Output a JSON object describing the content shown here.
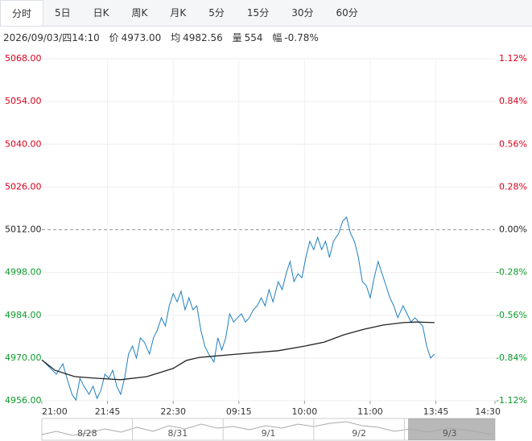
{
  "tabs": [
    "分时",
    "5日",
    "日K",
    "周K",
    "月K",
    "5分",
    "15分",
    "30分",
    "60分"
  ],
  "info": {
    "datetime": "2026/09/03/四14:10",
    "price_label": "价",
    "price": "4973.00",
    "avg_label": "均",
    "avg": "4982.56",
    "vol_label": "量",
    "vol": "554",
    "chg_label": "幅",
    "chg": "-0.78%"
  },
  "chart_data": {
    "type": "line",
    "xlim": [
      0,
      345
    ],
    "xticks": [
      {
        "value": 0,
        "label": "21:00"
      },
      {
        "value": 50,
        "label": "21:45"
      },
      {
        "value": 100,
        "label": "22:30"
      },
      {
        "value": 150,
        "label": "09:15"
      },
      {
        "value": 200,
        "label": "10:00"
      },
      {
        "value": 250,
        "label": "11:00"
      },
      {
        "value": 300,
        "label": "13:45"
      },
      {
        "value": 345,
        "label": "14:30"
      }
    ],
    "ylim": [
      4956,
      5068
    ],
    "yticks": [
      {
        "value": 5068,
        "label": "5068.00"
      },
      {
        "value": 5054,
        "label": "5054.00"
      },
      {
        "value": 5040,
        "label": "5040.00"
      },
      {
        "value": 5026,
        "label": "5026.00"
      },
      {
        "value": 5012,
        "label": "5012.00"
      },
      {
        "value": 4998,
        "label": "4998.00"
      },
      {
        "value": 4984,
        "label": "4984.00"
      },
      {
        "value": 4970,
        "label": "4970.00"
      },
      {
        "value": 4956,
        "label": "4956.00"
      }
    ],
    "y2lim": [
      -1.12,
      1.12
    ],
    "y2ticks": [
      {
        "value": 1.12,
        "label": "1.12%"
      },
      {
        "value": 0.84,
        "label": "0.84%"
      },
      {
        "value": 0.56,
        "label": "0.56%"
      },
      {
        "value": 0.28,
        "label": "0.28%"
      },
      {
        "value": 0,
        "label": "0.00%"
      },
      {
        "value": -0.28,
        "label": "-0.28%"
      },
      {
        "value": -0.56,
        "label": "-0.56%"
      },
      {
        "value": -0.84,
        "label": "-0.84%"
      },
      {
        "value": -1.12,
        "label": "-1.12%"
      }
    ],
    "grid": true,
    "series": [
      {
        "color": "#1f7fc0",
        "x": [
          0,
          5,
          11,
          16,
          20,
          23,
          26,
          29,
          32,
          36,
          39,
          42,
          45,
          48,
          51,
          54,
          57,
          60,
          63,
          66,
          69,
          72,
          75,
          78,
          82,
          85,
          88,
          91,
          94,
          97,
          100,
          103,
          106,
          109,
          112,
          115,
          118,
          121,
          124,
          127,
          131,
          134,
          137,
          140,
          143,
          146,
          149,
          152,
          155,
          158,
          161,
          164,
          167,
          170,
          173,
          176,
          180,
          183,
          186,
          189,
          192,
          195,
          198,
          201,
          204,
          207,
          210,
          213,
          216,
          219,
          222,
          226,
          229,
          232,
          235,
          238,
          241,
          244,
          247,
          250,
          253,
          256,
          259,
          262,
          265,
          268,
          271,
          275,
          278,
          281,
          284,
          287,
          290,
          293,
          296,
          299
        ],
        "values": [
          4969.4,
          4967.3,
          4964.7,
          4968.1,
          4962.1,
          4958.1,
          4956.2,
          4963.4,
          4960.8,
          4958.1,
          4960.8,
          4956.8,
          4959.4,
          4964.7,
          4963.4,
          4966.0,
          4960.8,
          4958.1,
          4963.4,
          4971.3,
          4973.9,
          4970.0,
          4976.6,
          4975.2,
          4971.3,
          4976.6,
          4979.2,
          4983.2,
          4980.5,
          4987.1,
          4991.1,
          4988.4,
          4991.9,
          4985.8,
          4989.7,
          4985.8,
          4987.1,
          4979.2,
          4973.9,
          4971.3,
          4968.7,
          4976.6,
          4972.6,
          4976.6,
          4984.5,
          4981.8,
          4983.2,
          4984.5,
          4981.8,
          4983.2,
          4985.8,
          4987.1,
          4989.7,
          4987.1,
          4992.4,
          4988.4,
          4995.0,
          4992.4,
          4997.6,
          5001.6,
          4995.0,
          4997.6,
          4996.3,
          5002.9,
          5008.2,
          5005.5,
          5009.5,
          5005.5,
          5008.2,
          5002.9,
          5008.2,
          5010.8,
          5014.8,
          5016.1,
          5010.8,
          5008.2,
          5002.9,
          4995.0,
          4993.7,
          4989.7,
          4996.3,
          5001.6,
          4997.6,
          4993.7,
          4989.7,
          4987.1,
          4983.2,
          4987.1,
          4984.5,
          4981.8,
          4983.2,
          4981.8,
          4980.5,
          4973.9,
          4970.0,
          4971.3
        ]
      },
      {
        "color": "#222222",
        "x": [
          0,
          10,
          25,
          40,
          60,
          80,
          100,
          110,
          120,
          150,
          180,
          200,
          215,
          230,
          245,
          260,
          275,
          285,
          299
        ],
        "values": [
          4969.4,
          4966.0,
          4963.9,
          4963.4,
          4962.9,
          4963.9,
          4966.6,
          4969.2,
          4970.2,
          4971.3,
          4972.4,
          4973.9,
          4975.2,
          4977.6,
          4979.4,
          4980.8,
          4981.6,
          4981.8,
          4981.6
        ]
      }
    ],
    "up_color": "#d9001b",
    "down_color": "#0a9a2a"
  },
  "navigator": {
    "labels": [
      "8/28",
      "8/31",
      "9/1",
      "9/2",
      "9/3"
    ]
  }
}
